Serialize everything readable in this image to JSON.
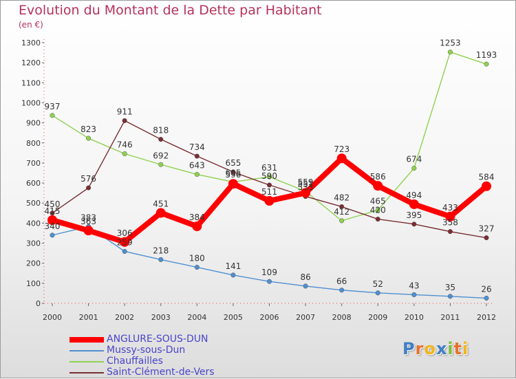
{
  "chart_data": {
    "type": "line",
    "title": "Evolution du Montant de la Dette par Habitant",
    "subtitle": "(en €)",
    "x": [
      "2000",
      "2001",
      "2002",
      "2003",
      "2004",
      "2005",
      "2006",
      "2007",
      "2008",
      "2009",
      "2010",
      "2011",
      "2012"
    ],
    "ylim": [
      0,
      1300
    ],
    "yticks": [
      0,
      100,
      200,
      300,
      400,
      500,
      600,
      700,
      800,
      900,
      1000,
      1100,
      1200,
      1300
    ],
    "grid": false,
    "legend": "bottom-left",
    "series": [
      {
        "name": "ANGLURE-SOUS-DUN",
        "color": "#ff0000",
        "values": [
          415,
          363,
          306,
          451,
          384,
          596,
          511,
          551,
          723,
          586,
          494,
          433,
          584
        ]
      },
      {
        "name": "Mussy-sous-Dun",
        "color": "#4f8fd0",
        "values": [
          340,
          383,
          259,
          218,
          180,
          141,
          109,
          86,
          66,
          52,
          43,
          35,
          26
        ]
      },
      {
        "name": "Chauffailles",
        "color": "#8fd14f",
        "values": [
          937,
          823,
          746,
          692,
          643,
          605,
          631,
          559,
          412,
          465,
          674,
          1253,
          1193
        ]
      },
      {
        "name": "Saint-Clément-de-Vers",
        "color": "#7a2d33",
        "values": [
          450,
          576,
          911,
          818,
          734,
          655,
          590,
          533,
          482,
          420,
          395,
          358,
          327
        ]
      }
    ]
  },
  "logo": {
    "letters": [
      {
        "ch": "P",
        "color": "#3f7fc6"
      },
      {
        "ch": "r",
        "color": "#e8712a"
      },
      {
        "ch": "o",
        "color": "#f2b51d"
      },
      {
        "ch": "x",
        "color": "#3f7fc6"
      },
      {
        "ch": "i",
        "color": "#7cbf3a"
      },
      {
        "ch": "t",
        "color": "#e8712a"
      },
      {
        "ch": "i",
        "color": "#f2b51d"
      }
    ]
  }
}
